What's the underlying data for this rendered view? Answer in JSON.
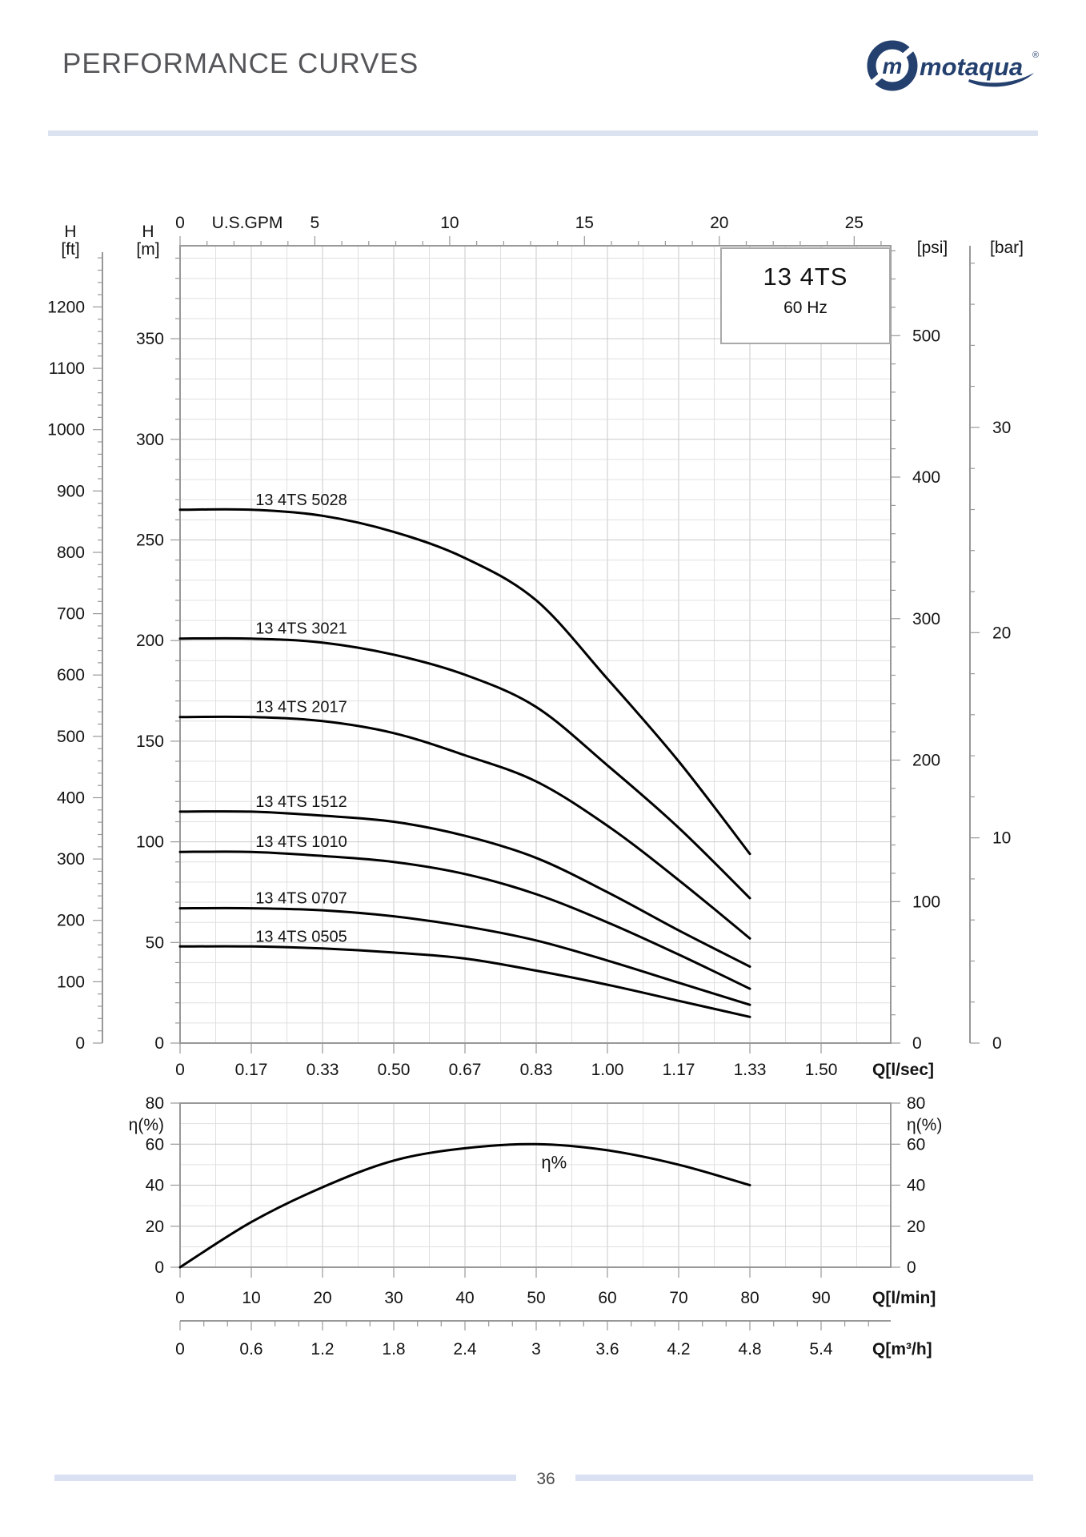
{
  "header": {
    "title": "PERFORMANCE CURVES"
  },
  "logo": {
    "brand": "motaqua",
    "registered": "®",
    "icon": "motaqua-swirl-icon",
    "color": "#24406e"
  },
  "model_box": {
    "model": "13 4TS",
    "frequency": "60 Hz"
  },
  "footer": {
    "page_number": "36"
  },
  "colors": {
    "accent_bar": "#dbe3f1",
    "axis": "#989898",
    "grid_minor": "#e0e0e0",
    "grid_major": "#c9c9c9",
    "curve": "#000000",
    "text": "#141414"
  },
  "chart_data": [
    {
      "type": "line",
      "name": "head-flow-curves",
      "title": "13 4TS",
      "subtitle": "60 Hz",
      "axes": {
        "top": {
          "label": "U.S.GPM",
          "ticks": [
            0,
            5,
            10,
            15,
            20,
            25
          ],
          "minor_step": 1
        },
        "bottom": {
          "label": "Q[l/sec]",
          "ticks": [
            "0",
            "0.17",
            "0.33",
            "0.50",
            "0.67",
            "0.83",
            "1.00",
            "1.17",
            "1.33",
            "1.50"
          ]
        },
        "left_m": {
          "label_line1": "H",
          "label_line2": "[m]",
          "ticks": [
            0,
            50,
            100,
            150,
            200,
            250,
            300,
            350
          ],
          "minor_step": 10
        },
        "left_ft": {
          "label_line1": "H",
          "label_line2": "[ft]",
          "ticks": [
            0,
            100,
            200,
            300,
            400,
            500,
            600,
            700,
            800,
            900,
            1000,
            1100,
            1200
          ],
          "minor_step": 20
        },
        "right_psi": {
          "label": "[psi]",
          "ticks": [
            0,
            100,
            200,
            300,
            400,
            500
          ],
          "minor_step": 20
        },
        "right_bar": {
          "label": "[bar]",
          "ticks": [
            0,
            10,
            20,
            30
          ],
          "minor_step": 2
        }
      },
      "grid": {
        "x_every_lmin": 5,
        "y_every_m": 10
      },
      "q_lsec": [
        0,
        0.1667,
        0.3333,
        0.5,
        0.6667,
        0.8333,
        1.0,
        1.1667,
        1.3333
      ],
      "series": [
        {
          "name": "13 4TS 5028",
          "h_m": [
            265,
            265,
            262,
            254,
            241,
            220,
            181,
            140,
            94
          ]
        },
        {
          "name": "13 4TS 3021",
          "h_m": [
            201,
            201,
            199,
            193,
            183,
            167,
            138,
            107,
            72
          ]
        },
        {
          "name": "13 4TS 2017",
          "h_m": [
            162,
            162,
            160,
            154,
            143,
            130,
            108,
            81,
            52
          ]
        },
        {
          "name": "13 4TS 1512",
          "h_m": [
            115,
            115,
            113,
            110,
            103,
            92,
            75,
            56,
            38
          ]
        },
        {
          "name": "13 4TS 1010",
          "h_m": [
            95,
            95,
            93,
            90,
            84,
            74,
            60,
            44,
            27
          ]
        },
        {
          "name": "13 4TS 0707",
          "h_m": [
            67,
            67,
            66,
            63,
            58,
            51,
            41,
            30,
            19
          ]
        },
        {
          "name": "13 4TS 0505",
          "h_m": [
            48,
            48,
            47,
            45,
            42,
            36,
            29,
            21,
            13
          ]
        }
      ],
      "series_label_x_lsec": 0.28
    },
    {
      "type": "line",
      "name": "efficiency-curve",
      "axes": {
        "left": {
          "label": "η(%)",
          "ticks": [
            0,
            20,
            40,
            60,
            80
          ],
          "grid_step": 10
        },
        "right": {
          "label": "η(%)",
          "ticks": [
            0,
            20,
            40,
            60,
            80
          ]
        },
        "bottom_lmin": {
          "label": "Q[l/min]",
          "ticks": [
            0,
            10,
            20,
            30,
            40,
            50,
            60,
            70,
            80,
            90
          ]
        },
        "bottom_m3h": {
          "label": "Q[m³/h]",
          "ticks": [
            "0",
            "0.6",
            "1.2",
            "1.8",
            "2.4",
            "3",
            "3.6",
            "4.2",
            "4.8",
            "5.4"
          ],
          "minor_step": 0.2
        }
      },
      "series": [
        {
          "name": "η%",
          "points_lmin_pct": [
            [
              0,
              0
            ],
            [
              10,
              22
            ],
            [
              20,
              39
            ],
            [
              30,
              52
            ],
            [
              40,
              58
            ],
            [
              50,
              60
            ],
            [
              60,
              57
            ],
            [
              70,
              50
            ],
            [
              80,
              40
            ]
          ]
        }
      ],
      "curve_label": {
        "text": "η%",
        "at_lmin": 52.5,
        "at_pct": 51
      }
    }
  ]
}
